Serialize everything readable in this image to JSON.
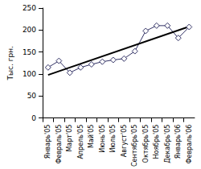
{
  "chart_data": {
    "type": "line",
    "y_label": "Тыс. грн.",
    "categories": [
      "Январь'05",
      "Февраль'05",
      "Март'05",
      "Апрель'05",
      "Май'05",
      "Июнь'05",
      "Июль'05",
      "Август'05",
      "Сентябрь'05",
      "Октябрь'05",
      "Ноябрь'05",
      "Декабрь'05",
      "Январь'06",
      "Февраль'06"
    ],
    "series": [
      {
        "color": "#333366",
        "marker": "diamond",
        "line_style": "solid",
        "values": [
          115,
          130,
          103,
          115,
          122,
          128,
          132,
          135,
          152,
          198,
          210,
          210,
          182,
          207
        ]
      },
      {
        "color": "#000000",
        "marker": "none",
        "line_style": "solid",
        "values": [
          98,
          null,
          null,
          null,
          null,
          null,
          null,
          null,
          null,
          null,
          null,
          null,
          null,
          208
        ]
      }
    ],
    "ylim": [
      0,
      250
    ],
    "yticks": [
      0,
      50,
      100,
      150,
      200,
      250
    ],
    "grid": false
  }
}
